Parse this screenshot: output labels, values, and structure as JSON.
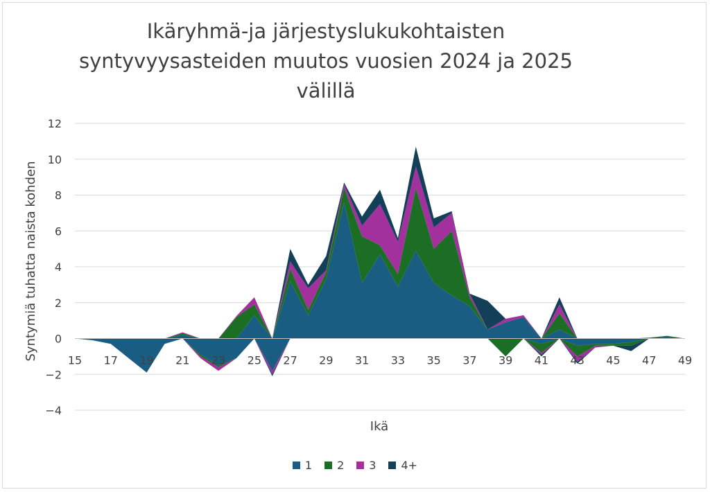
{
  "chart_data": {
    "type": "area",
    "stacked": true,
    "title": "Ikäryhmä-ja järjestyslukukohtaisten syntyvyysasteiden muutos vuosien 2024 ja 2025 välillä",
    "xlabel": "Ikä",
    "ylabel": "Syntymiä tuhatta naista kohden",
    "ylim": [
      -4,
      12
    ],
    "yticks": [
      -4,
      -2,
      0,
      2,
      4,
      6,
      8,
      10,
      12
    ],
    "ytick_labels": [
      "−4",
      "−2",
      "0",
      "2",
      "4",
      "6",
      "8",
      "10",
      "12"
    ],
    "xlim": [
      15,
      49
    ],
    "xticks": [
      15,
      17,
      19,
      21,
      23,
      25,
      27,
      29,
      31,
      33,
      35,
      37,
      39,
      41,
      43,
      45,
      47,
      49
    ],
    "x": [
      15,
      16,
      17,
      18,
      19,
      20,
      21,
      22,
      23,
      24,
      25,
      26,
      27,
      28,
      29,
      30,
      31,
      32,
      33,
      34,
      35,
      36,
      37,
      38,
      39,
      40,
      41,
      42,
      43,
      44,
      45,
      46,
      47,
      48,
      49
    ],
    "grid": true,
    "legend_position": "bottom",
    "series": [
      {
        "name": "1",
        "color": "#1a5d82",
        "values": [
          0,
          -0.1,
          -0.3,
          -1.1,
          -1.9,
          -0.3,
          0.2,
          -0.9,
          -1.5,
          -1.1,
          1.3,
          -1.8,
          3.2,
          1.3,
          3.3,
          7.6,
          3.1,
          4.7,
          2.9,
          4.9,
          3.1,
          2.4,
          1.8,
          0.5,
          0.9,
          1.2,
          -0.3,
          0.5,
          -0.4,
          -0.3,
          -0.3,
          -0.2,
          0.05,
          0.1,
          0
        ]
      },
      {
        "name": "2",
        "color": "#1c6e25",
        "values": [
          0,
          0,
          0,
          0,
          0,
          0,
          0.1,
          -0.1,
          -0.1,
          1.2,
          0.6,
          0,
          0.7,
          0.3,
          0.4,
          0.8,
          2.6,
          0.5,
          0.7,
          3.5,
          1.9,
          3.6,
          0.5,
          0,
          -1,
          0,
          -0.5,
          0.9,
          -0.6,
          -0.1,
          -0.1,
          -0.2,
          0,
          0.05,
          0
        ]
      },
      {
        "name": "3",
        "color": "#a3319d",
        "values": [
          0,
          0,
          0,
          0,
          0,
          0,
          0.05,
          -0.1,
          -0.2,
          0.05,
          0.4,
          -0.2,
          0.4,
          1.2,
          0.1,
          0.2,
          0.6,
          2.3,
          1.8,
          1.2,
          1.2,
          1,
          0.2,
          0,
          0.2,
          0.1,
          -0.1,
          0.5,
          -0.3,
          -0.1,
          0,
          0,
          0,
          0,
          0
        ]
      },
      {
        "name": "4+",
        "color": "#133f58",
        "values": [
          0,
          0,
          0,
          0,
          0,
          0,
          0,
          0,
          0,
          0,
          0,
          -0.1,
          0.7,
          0.2,
          0.8,
          0.1,
          0.5,
          0.8,
          0.2,
          1.1,
          0.5,
          0.1,
          0,
          1.6,
          0,
          0,
          -0.1,
          0.4,
          -0.1,
          0,
          0,
          -0.3,
          0,
          0,
          0
        ]
      }
    ]
  }
}
